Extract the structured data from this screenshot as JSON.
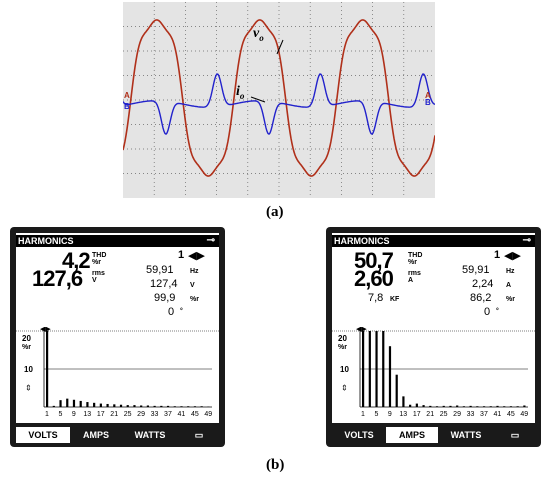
{
  "panel_a": {
    "caption": "(a)",
    "labels": {
      "vo": "v",
      "vo_sub": "o",
      "io": "i",
      "io_sub": "o",
      "a": "A",
      "b": "B"
    },
    "colors": {
      "voltage": "#b0301a",
      "current": "#2222cc",
      "grid": "#666666",
      "bg": "#e4e4e4"
    }
  },
  "panel_b": {
    "caption": "(b)"
  },
  "meters": [
    {
      "header": "HARMONICS",
      "thd_value": "4,2",
      "thd_label": "THD",
      "thd_unit": "%r",
      "rms_value": "127,6",
      "rms_label": "rms",
      "rms_unit": "V",
      "harmonic_no": "1",
      "freq": "59,91",
      "freq_unit": "Hz",
      "fund": "127,4",
      "fund_unit": "V",
      "pct": "99,9",
      "pct_unit": "%r",
      "phase": "0",
      "phase_unit": "°",
      "kf": "",
      "kf_unit": "",
      "y_top": "20",
      "y_unit": "%r",
      "y_mid": "10",
      "x_ticks": [
        "1",
        "5",
        "9",
        "13",
        "17",
        "21",
        "25",
        "29",
        "33",
        "37",
        "41",
        "45",
        "49"
      ],
      "tabs": [
        "VOLTS",
        "AMPS",
        "WATTS"
      ],
      "active_tab": 0
    },
    {
      "header": "HARMONICS",
      "thd_value": "50,7",
      "thd_label": "THD",
      "thd_unit": "%r",
      "rms_value": "2,60",
      "rms_label": "rms",
      "rms_unit": "A",
      "harmonic_no": "1",
      "freq": "59,91",
      "freq_unit": "Hz",
      "fund": "2,24",
      "fund_unit": "A",
      "pct": "86,2",
      "pct_unit": "%r",
      "phase": "0",
      "phase_unit": "°",
      "kf": "7,8",
      "kf_unit": "KF",
      "y_top": "20",
      "y_unit": "%r",
      "y_mid": "10",
      "x_ticks": [
        "1",
        "5",
        "9",
        "13",
        "17",
        "21",
        "25",
        "29",
        "33",
        "37",
        "41",
        "45",
        "49"
      ],
      "tabs": [
        "VOLTS",
        "AMPS",
        "WATTS"
      ],
      "active_tab": 1
    }
  ],
  "chart_data": [
    {
      "type": "bar",
      "ylim": [
        0,
        20
      ],
      "x": [
        1,
        2,
        3,
        4,
        5,
        6,
        7,
        8,
        9,
        10,
        11,
        12,
        13,
        14,
        15,
        16,
        17,
        18,
        19,
        20,
        21,
        22,
        23,
        24,
        25,
        26,
        27,
        28,
        29,
        30,
        31,
        32,
        33,
        34,
        35,
        36,
        37,
        38,
        39,
        40,
        41,
        42,
        43,
        44,
        45,
        46,
        47,
        48,
        49,
        50
      ],
      "values": [
        20,
        0,
        0.3,
        0,
        1.8,
        0,
        2.2,
        0,
        1.9,
        0,
        1.6,
        0,
        1.3,
        0,
        1.1,
        0,
        0.9,
        0,
        0.8,
        0,
        0.7,
        0,
        0.6,
        0,
        0.5,
        0,
        0.5,
        0,
        0.4,
        0,
        0.4,
        0,
        0.3,
        0,
        0.3,
        0,
        0.3,
        0,
        0.2,
        0,
        0.2,
        0,
        0.2,
        0,
        0.2,
        0,
        0.2,
        0,
        0.1,
        0
      ]
    },
    {
      "type": "bar",
      "ylim": [
        0,
        20
      ],
      "x": [
        1,
        2,
        3,
        4,
        5,
        6,
        7,
        8,
        9,
        10,
        11,
        12,
        13,
        14,
        15,
        16,
        17,
        18,
        19,
        20,
        21,
        22,
        23,
        24,
        25,
        26,
        27,
        28,
        29,
        30,
        31,
        32,
        33,
        34,
        35,
        36,
        37,
        38,
        39,
        40,
        41,
        42,
        43,
        44,
        45,
        46,
        47,
        48,
        49,
        50
      ],
      "values": [
        20,
        0,
        20,
        0,
        20,
        0,
        20,
        0,
        16,
        0,
        8.5,
        0,
        2.8,
        0,
        0.6,
        0,
        0.9,
        0,
        0.5,
        0,
        0.3,
        0,
        0.2,
        0,
        0.3,
        0,
        0.3,
        0,
        0.4,
        0,
        0.2,
        0,
        0.3,
        0,
        0.2,
        0,
        0.2,
        0,
        0.2,
        0,
        0.3,
        0,
        0.2,
        0,
        0.2,
        0,
        0.2,
        0,
        0.4,
        0
      ]
    }
  ]
}
